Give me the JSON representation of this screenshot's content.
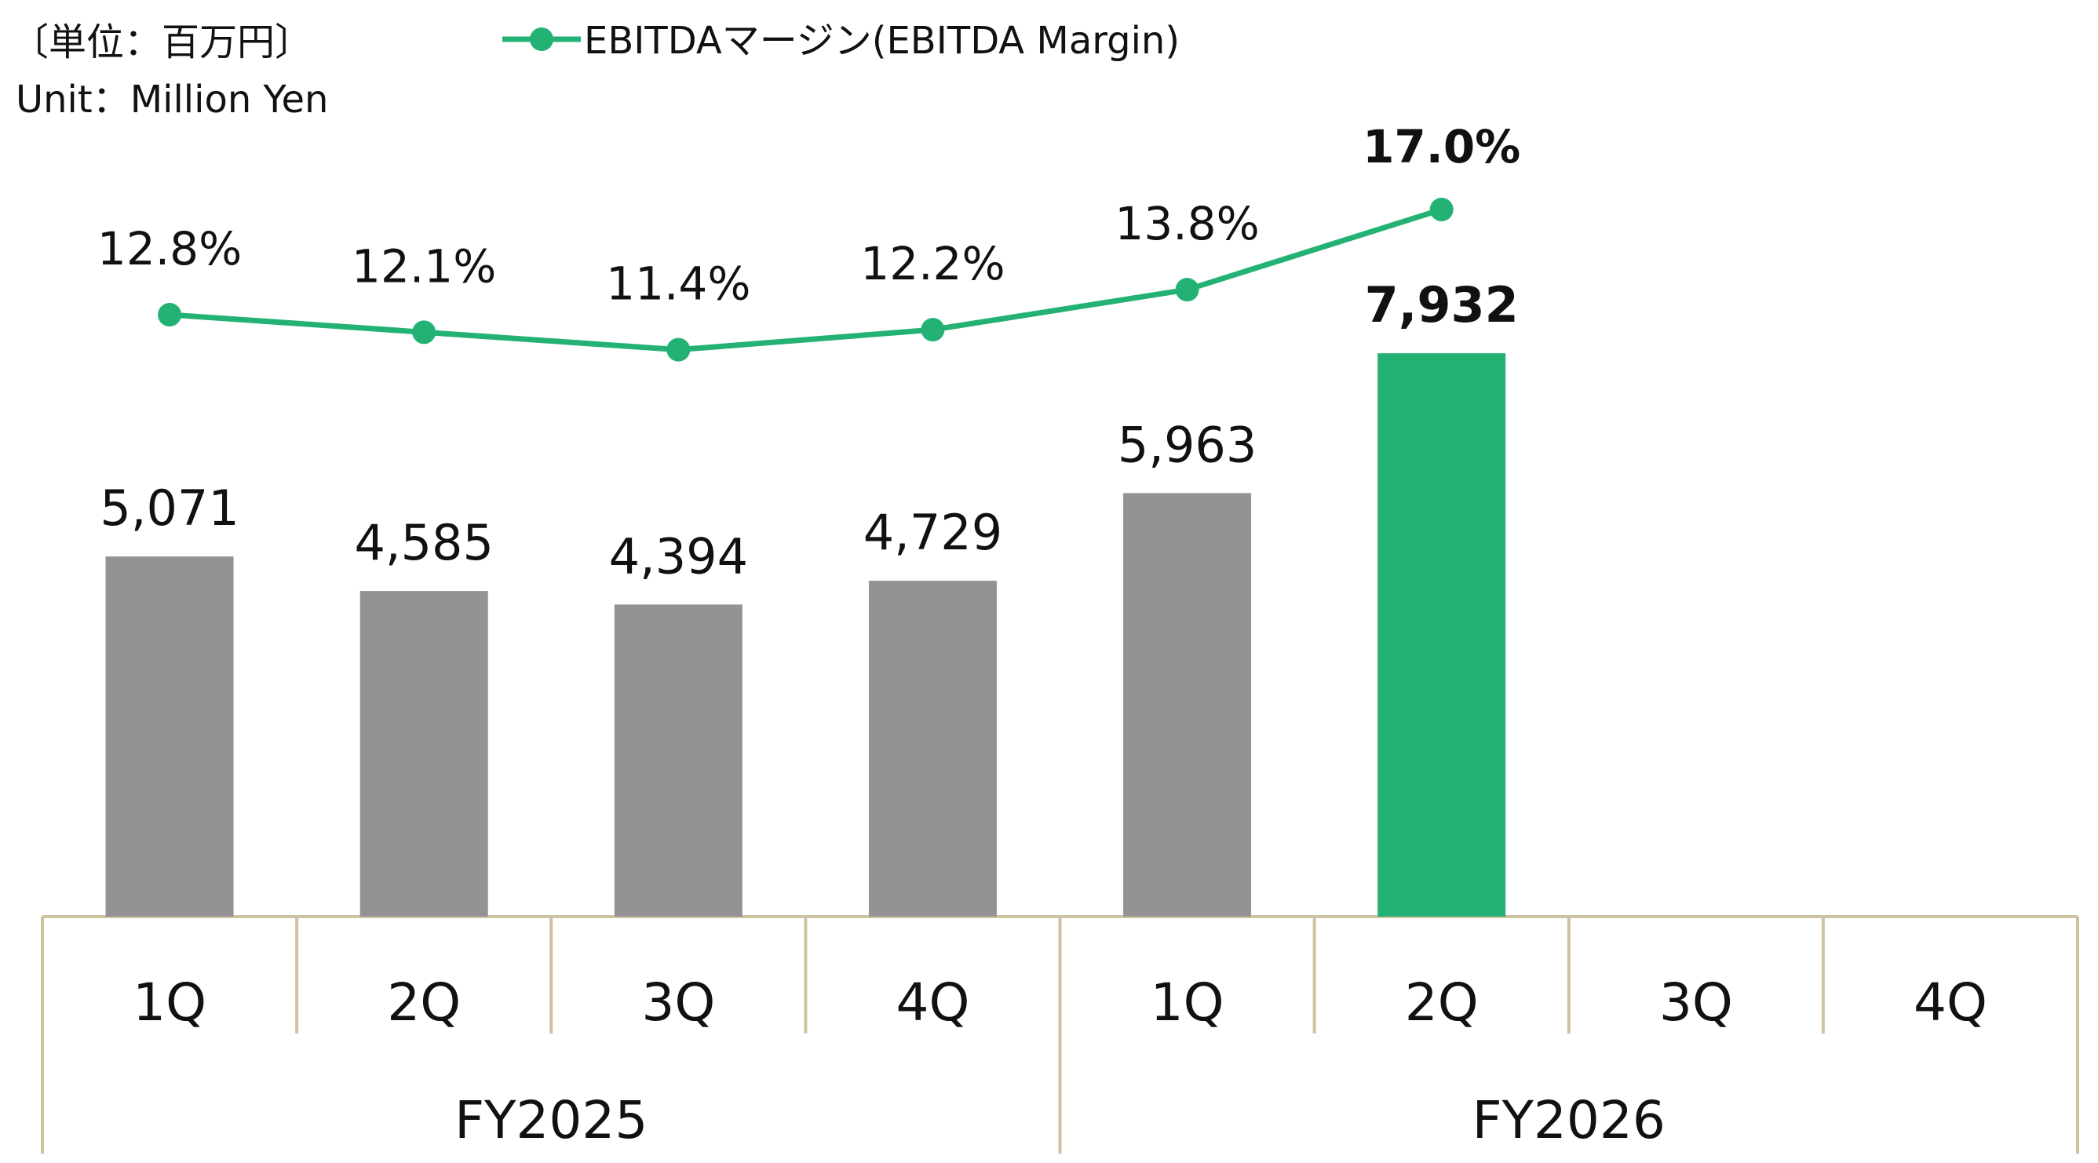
{
  "unit_label_ja": "〔単位：百万円〕",
  "unit_label_en": "Unit：Million Yen",
  "colors": {
    "bar_default": "#939393",
    "bar_highlight": "#23b273",
    "line": "#23b273",
    "axis": "#cdc3a0"
  },
  "chart_data": {
    "type": "bar",
    "categories": [
      "1Q",
      "2Q",
      "3Q",
      "4Q",
      "1Q",
      "2Q",
      "3Q",
      "4Q"
    ],
    "groups": [
      {
        "label": "FY2025",
        "span": 4
      },
      {
        "label": "FY2026",
        "span": 4
      }
    ],
    "series": [
      {
        "type": "bar",
        "values": [
          5071,
          4585,
          4394,
          4729,
          5963,
          7932,
          null,
          null
        ],
        "labels": [
          "5,071",
          "4,585",
          "4,394",
          "4,729",
          "5,963",
          "7,932",
          "",
          ""
        ],
        "highlight_index": 5
      },
      {
        "name": "EBITDAマージン(EBITDA Margin)",
        "type": "line",
        "values": [
          12.8,
          12.1,
          11.4,
          12.2,
          13.8,
          17.0,
          null,
          null
        ],
        "labels": [
          "12.8%",
          "12.1%",
          "11.4%",
          "12.2%",
          "13.8%",
          "17.0%",
          "",
          ""
        ],
        "highlight_index": 5
      }
    ],
    "legend_position": "top",
    "grid": false
  }
}
